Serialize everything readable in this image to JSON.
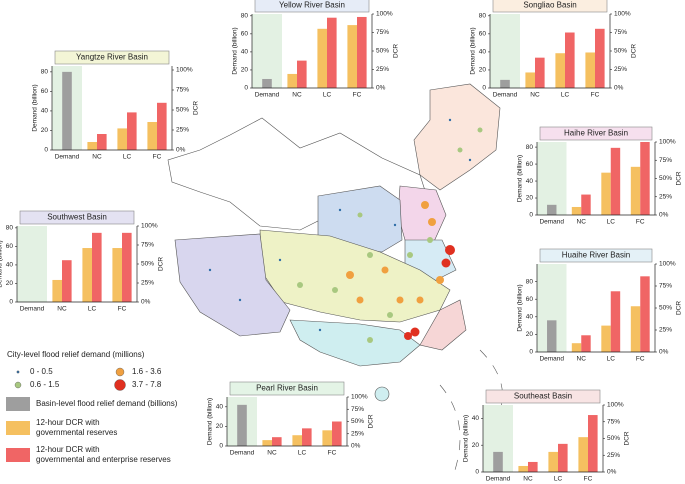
{
  "chart_data": [
    {
      "type": "bar",
      "title": "Yangtze River Basin",
      "title_background": "#f3f5d6",
      "categories": [
        "Demand",
        "NC",
        "LC",
        "FC"
      ],
      "ylabel": "Demand (billion)",
      "y2label": "DCR",
      "series": [
        {
          "color": "#9e9e9e",
          "values": [
            80,
            null,
            null,
            null
          ]
        },
        {
          "color": "#f5c060",
          "axis": "y2",
          "values": [
            null,
            10,
            27,
            35
          ]
        },
        {
          "color": "#f06565",
          "axis": "y2",
          "values": [
            null,
            20,
            47,
            59
          ]
        }
      ],
      "ylim": [
        0,
        86
      ],
      "yticks": [
        0,
        20,
        40,
        60,
        80
      ],
      "y2lim": [
        0,
        105
      ],
      "y2ticks": [
        {
          "value": 0,
          "label": "0%"
        },
        {
          "value": 25,
          "label": "25%"
        },
        {
          "value": 50,
          "label": "50%"
        },
        {
          "value": 75,
          "label": "75%"
        },
        {
          "value": 100,
          "label": "100%"
        }
      ]
    },
    {
      "type": "bar",
      "title": "Yellow River Basin",
      "title_background": "#e6ecf7",
      "categories": [
        "Demand",
        "NC",
        "LC",
        "FC"
      ],
      "ylabel": "Demand (billion)",
      "y2label": "DCR",
      "series": [
        {
          "color": "#9e9e9e",
          "values": [
            10,
            null,
            null,
            null
          ]
        },
        {
          "color": "#f5c060",
          "axis": "y2",
          "values": [
            null,
            19,
            80,
            85
          ]
        },
        {
          "color": "#f06565",
          "axis": "y2",
          "values": [
            null,
            37,
            95,
            96
          ]
        }
      ],
      "ylim": [
        0,
        82
      ],
      "yticks": [
        0,
        20,
        40,
        60,
        80
      ],
      "y2lim": [
        0,
        100
      ],
      "y2ticks": [
        {
          "value": 0,
          "label": "0%"
        },
        {
          "value": 25,
          "label": "25%"
        },
        {
          "value": 50,
          "label": "50%"
        },
        {
          "value": 75,
          "label": "75%"
        },
        {
          "value": 100,
          "label": "100%"
        }
      ]
    },
    {
      "type": "bar",
      "title": "Songliao Basin",
      "title_background": "#fbeee0",
      "categories": [
        "Demand",
        "NC",
        "LC",
        "FC"
      ],
      "ylabel": "Demand (billion)",
      "y2label": "DCR",
      "series": [
        {
          "color": "#9e9e9e",
          "values": [
            9,
            null,
            null,
            null
          ]
        },
        {
          "color": "#f5c060",
          "axis": "y2",
          "values": [
            null,
            21,
            47,
            48
          ]
        },
        {
          "color": "#f06565",
          "axis": "y2",
          "values": [
            null,
            41,
            75,
            80
          ]
        }
      ],
      "ylim": [
        0,
        82
      ],
      "yticks": [
        0,
        20,
        40,
        60,
        80
      ],
      "y2lim": [
        0,
        100
      ],
      "y2ticks": [
        {
          "value": 0,
          "label": "0%"
        },
        {
          "value": 25,
          "label": "25%"
        },
        {
          "value": 50,
          "label": "50%"
        },
        {
          "value": 75,
          "label": "75%"
        },
        {
          "value": 100,
          "label": "100%"
        }
      ]
    },
    {
      "type": "bar",
      "title": "Haihe River Basin",
      "title_background": "#f6e0ee",
      "categories": [
        "Demand",
        "NC",
        "LC",
        "FC"
      ],
      "ylabel": "Demand (billion)",
      "y2label": "DCR",
      "series": [
        {
          "color": "#9e9e9e",
          "values": [
            12,
            null,
            null,
            null
          ]
        },
        {
          "color": "#f5c060",
          "axis": "y2",
          "values": [
            null,
            11,
            58,
            66
          ]
        },
        {
          "color": "#f06565",
          "axis": "y2",
          "values": [
            null,
            28,
            92,
            100
          ]
        }
      ],
      "ylim": [
        0,
        86
      ],
      "yticks": [
        0,
        20,
        40,
        60,
        80
      ],
      "y2lim": [
        0,
        100
      ],
      "y2ticks": [
        {
          "value": 0,
          "label": "0%"
        },
        {
          "value": 25,
          "label": "25%"
        },
        {
          "value": 50,
          "label": "50%"
        },
        {
          "value": 75,
          "label": "75%"
        },
        {
          "value": 100,
          "label": "100%"
        }
      ]
    },
    {
      "type": "bar",
      "title": "Southwest Basin",
      "title_background": "#e4e2f2",
      "categories": [
        "Demand",
        "NC",
        "LC",
        "FC"
      ],
      "ylabel": "Demand (billion)",
      "y2label": "DCR",
      "series": [
        {
          "color": "#9e9e9e",
          "values": [
            0,
            null,
            null,
            null
          ]
        },
        {
          "color": "#f5c060",
          "axis": "y2",
          "values": [
            null,
            29,
            71,
            71
          ]
        },
        {
          "color": "#f06565",
          "axis": "y2",
          "values": [
            null,
            55,
            91,
            91
          ]
        }
      ],
      "ylim": [
        0,
        82
      ],
      "yticks": [
        0,
        20,
        40,
        60,
        80
      ],
      "y2lim": [
        0,
        100
      ],
      "y2ticks": [
        {
          "value": 0,
          "label": "0%"
        },
        {
          "value": 25,
          "label": "25%"
        },
        {
          "value": 50,
          "label": "50%"
        },
        {
          "value": 75,
          "label": "75%"
        },
        {
          "value": 100,
          "label": "100%"
        }
      ]
    },
    {
      "type": "bar",
      "title": "Huaihe River Basin",
      "title_background": "#e4f1f7",
      "categories": [
        "Demand",
        "NC",
        "LC",
        "FC"
      ],
      "ylabel": "Demand (billion)",
      "y2label": "DCR",
      "series": [
        {
          "color": "#9e9e9e",
          "values": [
            36,
            null,
            null,
            null
          ]
        },
        {
          "color": "#f5c060",
          "axis": "y2",
          "values": [
            null,
            10,
            30,
            52
          ]
        },
        {
          "color": "#f06565",
          "axis": "y2",
          "values": [
            null,
            19,
            69,
            86
          ]
        }
      ],
      "ylim": [
        0,
        100
      ],
      "yticks": [
        0,
        20,
        40,
        60,
        80
      ],
      "y2lim": [
        0,
        100
      ],
      "y2ticks": [
        {
          "value": 0,
          "label": "0%"
        },
        {
          "value": 25,
          "label": "25%"
        },
        {
          "value": 50,
          "label": "50%"
        },
        {
          "value": 75,
          "label": "75%"
        },
        {
          "value": 100,
          "label": "100%"
        }
      ]
    },
    {
      "type": "bar",
      "title": "Pearl River Basin",
      "title_background": "#e4f4e6",
      "categories": [
        "Demand",
        "NC",
        "LC",
        "FC"
      ],
      "ylabel": "Demand (billion)",
      "y2label": "DCR",
      "series": [
        {
          "color": "#9e9e9e",
          "values": [
            42,
            null,
            null,
            null
          ]
        },
        {
          "color": "#f5c060",
          "axis": "y2",
          "values": [
            null,
            12,
            22,
            32
          ]
        },
        {
          "color": "#f06565",
          "axis": "y2",
          "values": [
            null,
            18,
            36,
            50
          ]
        }
      ],
      "ylim": [
        0,
        50
      ],
      "yticks": [
        0,
        20,
        40
      ],
      "y2lim": [
        0,
        100
      ],
      "y2ticks": [
        {
          "value": 0,
          "label": "0%"
        },
        {
          "value": 25,
          "label": "25%"
        },
        {
          "value": 50,
          "label": "50%"
        },
        {
          "value": 75,
          "label": "75%"
        },
        {
          "value": 100,
          "label": "100%"
        }
      ]
    },
    {
      "type": "bar",
      "title": "Southeast Basin",
      "title_background": "#f8e4e4",
      "categories": [
        "Demand",
        "NC",
        "LC",
        "FC"
      ],
      "ylabel": "Demand (billion)",
      "y2label": "DCR",
      "series": [
        {
          "color": "#9e9e9e",
          "values": [
            15,
            null,
            null,
            null
          ]
        },
        {
          "color": "#f5c060",
          "axis": "y2",
          "values": [
            null,
            9,
            30,
            52
          ]
        },
        {
          "color": "#f06565",
          "axis": "y2",
          "values": [
            null,
            15,
            42,
            85
          ]
        }
      ],
      "ylim": [
        0,
        50
      ],
      "yticks": [
        0,
        20,
        40
      ],
      "y2lim": [
        0,
        100
      ],
      "y2ticks": [
        {
          "value": 0,
          "label": "0%"
        },
        {
          "value": 25,
          "label": "25%"
        },
        {
          "value": 50,
          "label": "50%"
        },
        {
          "value": 75,
          "label": "75%"
        },
        {
          "value": 100,
          "label": "100%"
        }
      ]
    }
  ],
  "map_legend": {
    "title": "City-level flood relief demand (millions)",
    "sizes": [
      {
        "label": "0 - 0.5",
        "color": "#2f6ea8"
      },
      {
        "label": "1.6 - 3.6",
        "color": "#f0a040"
      },
      {
        "label": "0.6 - 1.5",
        "color": "#a8c880"
      },
      {
        "label": "3.7 - 7.8",
        "color": "#e03020"
      }
    ],
    "bars": [
      {
        "lines": [
          "Basin-level flood relief demand (billions)"
        ],
        "color": "#9e9e9e"
      },
      {
        "lines": [
          "12-hour DCR with",
          "governmental reserves"
        ],
        "color": "#f5c060"
      },
      {
        "lines": [
          "12-hour DCR with",
          "governmental and enterprise reserves"
        ],
        "color": "#f06565"
      }
    ]
  }
}
